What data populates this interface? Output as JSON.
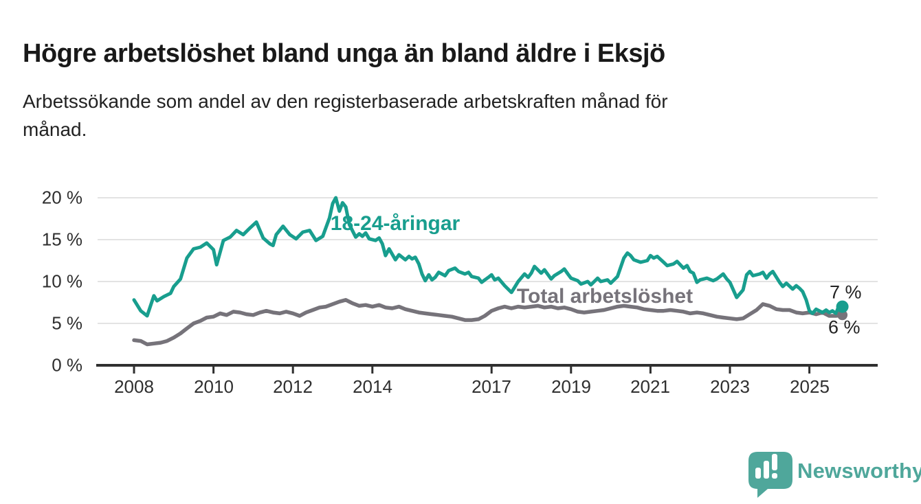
{
  "title": "Högre arbetslöshet bland unga än bland äldre i Eksjö",
  "subtitle_lines": [
    "Arbetssökande som andel av den registerbaserade arbetskraften månad för",
    "månad."
  ],
  "colors": {
    "accent_teal": "#189E8E",
    "series_gray": "#76737A",
    "axis": "#2F2F2F",
    "gridline": "#E3E3E3",
    "text": "#222222",
    "logo_teal": "#4FA79B"
  },
  "branding": {
    "logo_text": "Newsworthy",
    "logo_icon": "speech-bubble-with-bar-chart-and-exclamation"
  },
  "chart_data": {
    "type": "line",
    "title": "",
    "xlabel": "",
    "ylabel": "",
    "grid": true,
    "legend_position": "inline-labels-on-lines",
    "x_unit": "decimal year (monthly observations)",
    "xlim": [
      2007.1,
      2026.4
    ],
    "ylim": [
      0,
      20
    ],
    "y_ticks": [
      0,
      5,
      10,
      15,
      20
    ],
    "y_tick_labels": [
      "0 %",
      "5 %",
      "10 %",
      "15 %",
      "20 %"
    ],
    "x_ticks": [
      2008,
      2010,
      2012,
      2014,
      2017,
      2019,
      2021,
      2023,
      2025
    ],
    "x_tick_labels": [
      "2008",
      "2010",
      "2012",
      "2014",
      "2017",
      "2019",
      "2021",
      "2023",
      "2025"
    ],
    "series": [
      {
        "name": "Total arbetslöshet",
        "color": "#76737A",
        "line_width": 5.5,
        "end_dot_radius": 7.5,
        "end_label": "6 %",
        "x": [
          2008.0,
          2008.17,
          2008.33,
          2008.5,
          2008.67,
          2008.83,
          2009.0,
          2009.17,
          2009.33,
          2009.5,
          2009.67,
          2009.83,
          2010.0,
          2010.17,
          2010.33,
          2010.5,
          2010.67,
          2010.83,
          2011.0,
          2011.17,
          2011.33,
          2011.5,
          2011.67,
          2011.83,
          2012.0,
          2012.17,
          2012.33,
          2012.5,
          2012.67,
          2012.83,
          2013.0,
          2013.17,
          2013.33,
          2013.5,
          2013.67,
          2013.83,
          2014.0,
          2014.17,
          2014.33,
          2014.5,
          2014.67,
          2014.83,
          2015.0,
          2015.17,
          2015.33,
          2015.5,
          2015.67,
          2015.83,
          2016.0,
          2016.17,
          2016.33,
          2016.5,
          2016.67,
          2016.83,
          2017.0,
          2017.17,
          2017.33,
          2017.5,
          2017.67,
          2017.83,
          2018.0,
          2018.17,
          2018.33,
          2018.5,
          2018.67,
          2018.83,
          2019.0,
          2019.17,
          2019.33,
          2019.5,
          2019.67,
          2019.83,
          2020.0,
          2020.17,
          2020.33,
          2020.5,
          2020.67,
          2020.83,
          2021.0,
          2021.17,
          2021.33,
          2021.5,
          2021.67,
          2021.83,
          2022.0,
          2022.17,
          2022.33,
          2022.5,
          2022.67,
          2022.83,
          2023.0,
          2023.17,
          2023.33,
          2023.5,
          2023.67,
          2023.83,
          2024.0,
          2024.17,
          2024.33,
          2024.5,
          2024.67,
          2024.83,
          2025.0,
          2025.17,
          2025.33,
          2025.5,
          2025.67,
          2025.83
        ],
        "values": [
          3.0,
          2.9,
          2.5,
          2.6,
          2.7,
          2.9,
          3.3,
          3.8,
          4.4,
          5.0,
          5.3,
          5.7,
          5.8,
          6.2,
          6.0,
          6.4,
          6.3,
          6.1,
          6.0,
          6.3,
          6.5,
          6.3,
          6.2,
          6.4,
          6.2,
          5.9,
          6.3,
          6.6,
          6.9,
          7.0,
          7.3,
          7.6,
          7.8,
          7.4,
          7.1,
          7.2,
          7.0,
          7.2,
          6.9,
          6.8,
          7.0,
          6.7,
          6.5,
          6.3,
          6.2,
          6.1,
          6.0,
          5.9,
          5.8,
          5.6,
          5.4,
          5.4,
          5.5,
          5.9,
          6.5,
          6.8,
          7.0,
          6.8,
          7.0,
          6.9,
          7.0,
          7.1,
          6.9,
          7.0,
          6.8,
          6.9,
          6.7,
          6.4,
          6.3,
          6.4,
          6.5,
          6.6,
          6.8,
          7.0,
          7.1,
          7.0,
          6.9,
          6.7,
          6.6,
          6.5,
          6.5,
          6.6,
          6.5,
          6.4,
          6.2,
          6.3,
          6.2,
          6.0,
          5.8,
          5.7,
          5.6,
          5.5,
          5.6,
          6.1,
          6.6,
          7.3,
          7.1,
          6.7,
          6.6,
          6.6,
          6.3,
          6.2,
          6.3,
          6.1,
          6.3,
          5.9,
          5.9,
          6.0
        ]
      },
      {
        "name": "18-24-åringar",
        "color": "#189E8E",
        "line_width": 5,
        "end_dot_radius": 9,
        "end_label": "7 %",
        "x": [
          2008.0,
          2008.17,
          2008.33,
          2008.5,
          2008.58,
          2008.75,
          2008.92,
          2009.0,
          2009.17,
          2009.33,
          2009.5,
          2009.67,
          2009.83,
          2010.0,
          2010.08,
          2010.25,
          2010.42,
          2010.58,
          2010.75,
          2010.92,
          2011.08,
          2011.25,
          2011.42,
          2011.5,
          2011.58,
          2011.75,
          2011.92,
          2012.08,
          2012.25,
          2012.42,
          2012.58,
          2012.75,
          2012.92,
          2013.0,
          2013.08,
          2013.17,
          2013.25,
          2013.33,
          2013.42,
          2013.58,
          2013.67,
          2013.75,
          2013.83,
          2013.92,
          2014.08,
          2014.17,
          2014.25,
          2014.33,
          2014.42,
          2014.58,
          2014.67,
          2014.83,
          2014.92,
          2015.0,
          2015.08,
          2015.17,
          2015.25,
          2015.33,
          2015.42,
          2015.5,
          2015.58,
          2015.67,
          2015.83,
          2015.92,
          2016.08,
          2016.17,
          2016.33,
          2016.42,
          2016.5,
          2016.67,
          2016.75,
          2016.83,
          2016.92,
          2017.0,
          2017.08,
          2017.17,
          2017.33,
          2017.5,
          2017.58,
          2017.67,
          2017.83,
          2017.92,
          2018.0,
          2018.08,
          2018.25,
          2018.33,
          2018.5,
          2018.58,
          2018.75,
          2018.83,
          2018.92,
          2019.0,
          2019.17,
          2019.25,
          2019.42,
          2019.5,
          2019.67,
          2019.75,
          2019.92,
          2020.0,
          2020.17,
          2020.33,
          2020.42,
          2020.5,
          2020.58,
          2020.75,
          2020.92,
          2021.0,
          2021.08,
          2021.17,
          2021.33,
          2021.42,
          2021.58,
          2021.67,
          2021.83,
          2021.92,
          2022.0,
          2022.08,
          2022.17,
          2022.25,
          2022.42,
          2022.58,
          2022.67,
          2022.83,
          2022.92,
          2023.0,
          2023.17,
          2023.33,
          2023.42,
          2023.5,
          2023.58,
          2023.75,
          2023.83,
          2023.92,
          2024.0,
          2024.08,
          2024.25,
          2024.33,
          2024.42,
          2024.58,
          2024.67,
          2024.75,
          2024.83,
          2024.92,
          2025.0,
          2025.08,
          2025.17,
          2025.33,
          2025.42,
          2025.5,
          2025.58,
          2025.67,
          2025.75,
          2025.83
        ],
        "values": [
          7.8,
          6.5,
          5.9,
          8.3,
          7.7,
          8.2,
          8.6,
          9.4,
          10.3,
          12.8,
          13.9,
          14.1,
          14.6,
          13.8,
          12.0,
          14.9,
          15.3,
          16.1,
          15.6,
          16.4,
          17.1,
          15.2,
          14.5,
          14.3,
          15.6,
          16.6,
          15.6,
          15.1,
          15.9,
          16.1,
          14.9,
          15.4,
          17.6,
          19.3,
          20.0,
          18.4,
          19.4,
          18.9,
          16.8,
          15.3,
          15.7,
          15.4,
          15.8,
          15.1,
          14.9,
          15.2,
          14.5,
          13.1,
          13.9,
          12.6,
          13.2,
          12.6,
          13.0,
          12.7,
          12.9,
          12.1,
          10.9,
          10.1,
          10.8,
          10.2,
          10.5,
          11.1,
          10.7,
          11.3,
          11.6,
          11.2,
          10.9,
          11.1,
          10.6,
          10.4,
          9.9,
          10.2,
          10.5,
          10.8,
          10.2,
          10.4,
          9.5,
          8.7,
          9.3,
          10.0,
          10.9,
          10.5,
          11.0,
          11.8,
          11.0,
          11.4,
          10.3,
          10.7,
          11.2,
          11.5,
          10.9,
          10.4,
          10.1,
          9.7,
          10.0,
          9.6,
          10.4,
          10.0,
          10.2,
          9.8,
          10.6,
          12.8,
          13.4,
          13.1,
          12.6,
          12.3,
          12.5,
          13.1,
          12.8,
          13.0,
          12.3,
          11.9,
          12.1,
          12.4,
          11.6,
          11.9,
          11.2,
          11.0,
          9.9,
          10.2,
          10.4,
          10.1,
          10.3,
          10.9,
          10.3,
          9.9,
          8.1,
          9.0,
          10.8,
          11.2,
          10.7,
          10.9,
          11.1,
          10.4,
          10.9,
          11.2,
          9.9,
          9.4,
          9.8,
          9.1,
          9.5,
          9.2,
          8.8,
          7.8,
          6.5,
          6.2,
          6.7,
          6.3,
          6.6,
          6.3,
          6.5,
          6.2,
          7.2,
          7.0
        ]
      }
    ]
  }
}
